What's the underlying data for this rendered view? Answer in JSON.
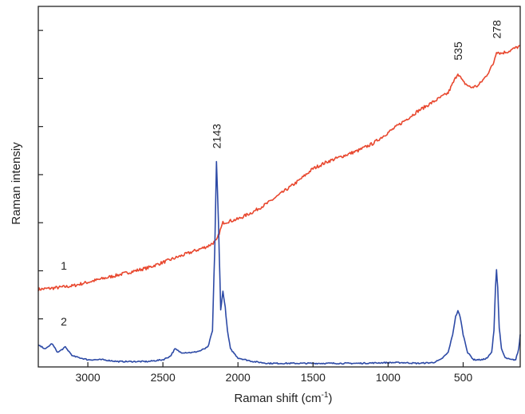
{
  "chart_data": {
    "type": "line",
    "xlabel": "Raman shift (cm",
    "xlabel_sup": "-1",
    "xlabel_close": ")",
    "ylabel": "Raman intensiy",
    "x_reversed": true,
    "xlim": [
      3330,
      120
    ],
    "ylim": [
      0,
      100
    ],
    "x_ticks": [
      3000,
      2500,
      2000,
      1500,
      1000,
      500
    ],
    "y_tick_count": 7,
    "grid": false,
    "colors": {
      "series1": "#e8472e",
      "series2": "#2d4aa6",
      "axis": "#222222"
    },
    "peak_labels": [
      {
        "text": "2143",
        "x": 2143,
        "series": "2"
      },
      {
        "text": "535",
        "x": 535,
        "series": "1"
      },
      {
        "text": "278",
        "x": 278,
        "series": "1"
      }
    ],
    "series": [
      {
        "label": "1",
        "x": [
          3330,
          3200,
          3100,
          3000,
          2900,
          2800,
          2700,
          2600,
          2500,
          2400,
          2300,
          2200,
          2143,
          2100,
          2050,
          2000,
          1900,
          1800,
          1700,
          1600,
          1500,
          1400,
          1300,
          1200,
          1100,
          1000,
          900,
          800,
          700,
          600,
          535,
          500,
          450,
          400,
          350,
          300,
          278,
          250,
          200,
          150,
          120
        ],
        "values": [
          21.5,
          22.0,
          22.5,
          23.5,
          24.5,
          25.5,
          26.5,
          27.5,
          29.0,
          30.5,
          32.0,
          33.5,
          35.0,
          40.0,
          40.5,
          41.0,
          43.0,
          45.5,
          48.5,
          51.5,
          55.0,
          57.0,
          58.5,
          60.0,
          62.0,
          65.0,
          68.0,
          71.0,
          73.5,
          76.0,
          81.5,
          79.0,
          77.5,
          78.0,
          80.5,
          84.0,
          87.5,
          87.0,
          87.5,
          88.5,
          89.0
        ]
      },
      {
        "label": "2",
        "x": [
          3330,
          3280,
          3240,
          3200,
          3150,
          3100,
          3000,
          2900,
          2800,
          2700,
          2600,
          2500,
          2450,
          2420,
          2380,
          2300,
          2250,
          2200,
          2170,
          2155,
          2143,
          2130,
          2115,
          2100,
          2085,
          2070,
          2050,
          2000,
          1900,
          1800,
          1600,
          1400,
          1200,
          1000,
          900,
          800,
          700,
          650,
          600,
          570,
          550,
          535,
          520,
          500,
          470,
          430,
          400,
          370,
          340,
          310,
          295,
          285,
          278,
          270,
          260,
          245,
          220,
          180,
          150,
          130,
          120
        ],
        "values": [
          6.0,
          5.0,
          6.5,
          4.0,
          5.5,
          3.0,
          2.0,
          2.0,
          1.5,
          1.5,
          1.5,
          2.0,
          3.0,
          5.0,
          4.0,
          4.0,
          4.5,
          5.5,
          10.0,
          32.0,
          57.0,
          40.0,
          16.0,
          21.0,
          16.5,
          10.0,
          5.0,
          2.5,
          1.5,
          1.0,
          1.0,
          1.0,
          1.0,
          1.2,
          1.2,
          1.0,
          1.2,
          2.0,
          4.0,
          9.0,
          14.0,
          15.5,
          14.0,
          9.0,
          4.0,
          2.0,
          2.0,
          2.0,
          2.5,
          4.0,
          10.0,
          22.0,
          27.0,
          22.0,
          11.0,
          5.0,
          2.5,
          2.0,
          2.0,
          5.0,
          9.0
        ]
      }
    ]
  }
}
